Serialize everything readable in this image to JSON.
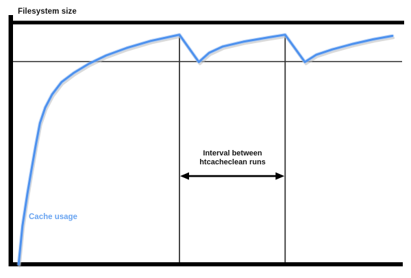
{
  "figure": {
    "background": "#ffffff"
  },
  "colors": {
    "axis": "#000000",
    "cache_limit_line": "#2a2a2a",
    "event_line": "#333333",
    "curve": "#4d91ee",
    "curve_halo": "#a4c6f6",
    "curve_shadow": "#bcbcbc",
    "cache_label_text": "#69a4f1",
    "text": "#141414",
    "arrow": "#000000"
  },
  "chart_data": {
    "type": "line",
    "title": "",
    "x_axis": {
      "label": "",
      "range": [
        0,
        100
      ],
      "ticks": []
    },
    "y_axis": {
      "label": "",
      "range": [
        0,
        100
      ],
      "ticks": []
    },
    "grid": false,
    "reference_lines": [
      {
        "name": "filesystem-size",
        "axis": "y",
        "value": 100,
        "label": "Filesystem size",
        "style": "thick"
      },
      {
        "name": "cache-limit",
        "axis": "y",
        "value": 83.9,
        "label": "",
        "style": "thin"
      }
    ],
    "event_lines": [
      {
        "name": "htcacheclean-run-1",
        "axis": "x",
        "value": 43.6
      },
      {
        "name": "htcacheclean-run-2",
        "axis": "x",
        "value": 71.4
      }
    ],
    "series": [
      {
        "name": "Cache usage",
        "color": "#4d91ee",
        "points": [
          [
            1.3,
            0
          ],
          [
            2.3,
            15.9
          ],
          [
            3.6,
            29.2
          ],
          [
            4.7,
            39.4
          ],
          [
            5.8,
            49.3
          ],
          [
            6.9,
            58.4
          ],
          [
            8.3,
            64.9
          ],
          [
            10.1,
            70.3
          ],
          [
            12.6,
            75.4
          ],
          [
            15.9,
            79.3
          ],
          [
            19.8,
            83.0
          ],
          [
            24.3,
            86.4
          ],
          [
            29.7,
            89.5
          ],
          [
            36.0,
            92.4
          ],
          [
            43.6,
            95.0
          ],
          [
            48.7,
            83.7
          ],
          [
            51.4,
            87.5
          ],
          [
            55.0,
            90.1
          ],
          [
            60.4,
            92.1
          ],
          [
            66.7,
            93.8
          ],
          [
            71.4,
            95.0
          ],
          [
            76.6,
            83.7
          ],
          [
            79.6,
            86.7
          ],
          [
            83.8,
            88.9
          ],
          [
            89.2,
            91.2
          ],
          [
            94.6,
            93.1
          ],
          [
            99.6,
            94.5
          ]
        ]
      }
    ],
    "annotation": {
      "text": [
        "Interval between",
        "htcacheclean runs"
      ],
      "arrow_x_from": 43.6,
      "arrow_x_to": 71.4,
      "arrow_y": 36.5
    },
    "legend": {
      "position": "lower-left-in-plot",
      "entries": [
        "Cache usage"
      ]
    }
  }
}
